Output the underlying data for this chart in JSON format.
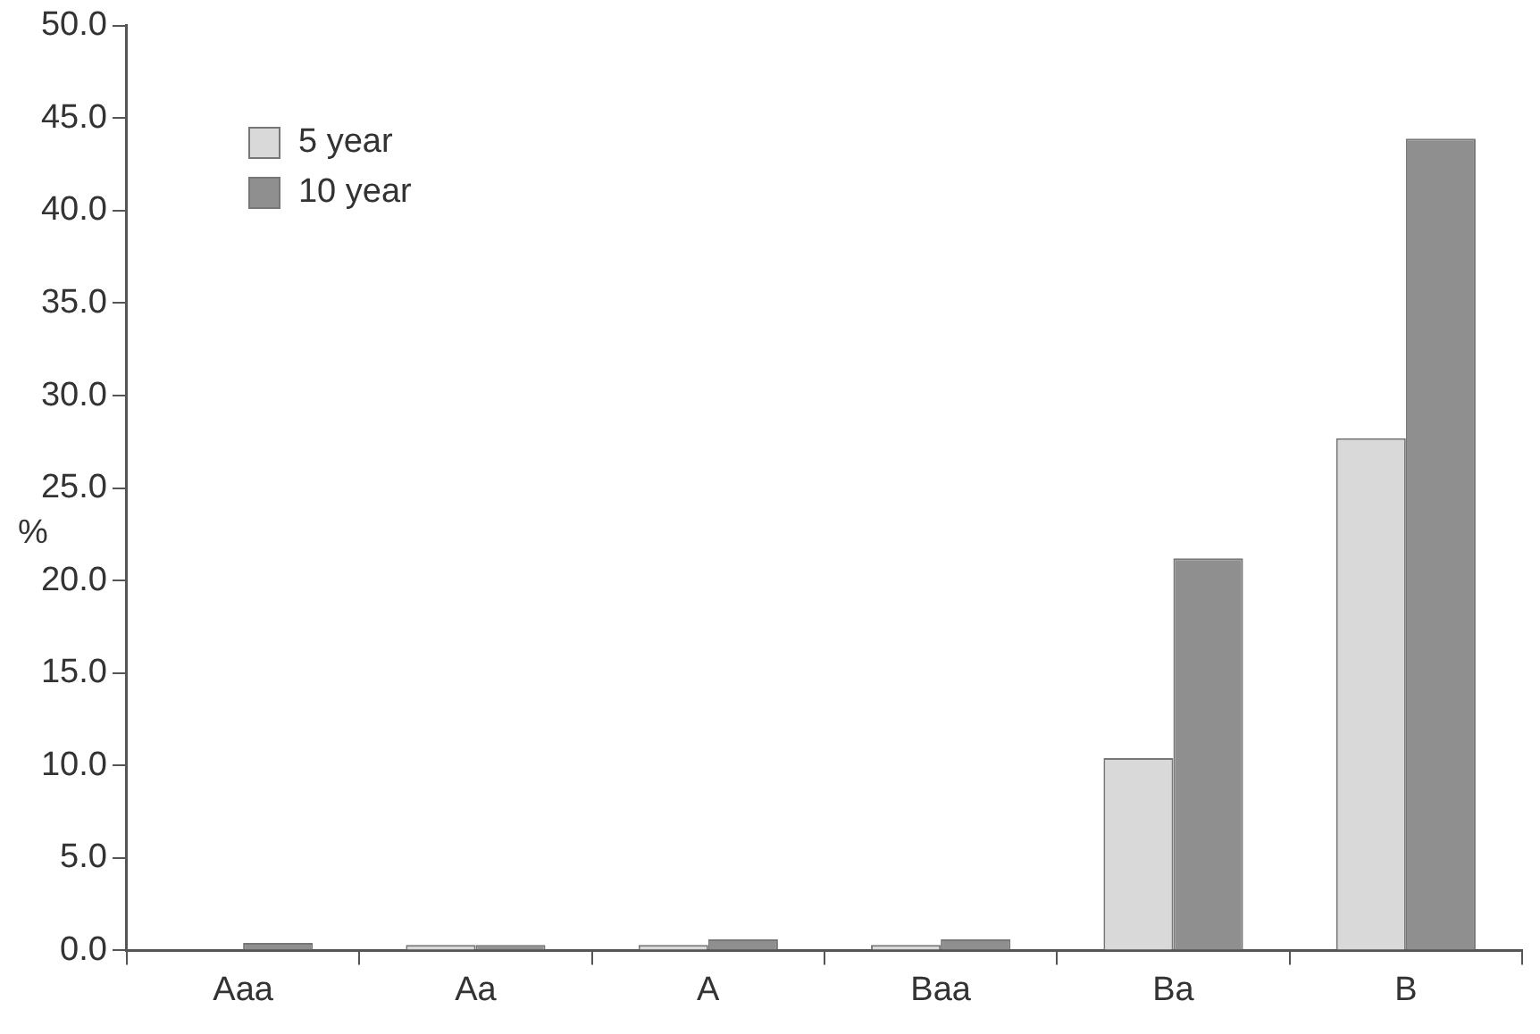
{
  "chart_data": {
    "type": "bar",
    "ylabel": "%",
    "categories": [
      "Aaa",
      "Aa",
      "A",
      "Baa",
      "Ba",
      "B"
    ],
    "series": [
      {
        "name": "5 year",
        "color": "#d9d9d9",
        "values": [
          0,
          0.3,
          0.3,
          0.3,
          10.4,
          27.7
        ]
      },
      {
        "name": "10 year",
        "color": "#8f8f8f",
        "values": [
          0.4,
          0.3,
          0.6,
          0.6,
          21.2,
          43.9
        ]
      }
    ],
    "ylim": [
      0,
      50
    ],
    "yticks": [
      {
        "value": 0,
        "label": "0.0"
      },
      {
        "value": 5,
        "label": "5.0"
      },
      {
        "value": 10,
        "label": "10.0"
      },
      {
        "value": 15,
        "label": "15.0"
      },
      {
        "value": 20,
        "label": "20.0"
      },
      {
        "value": 25,
        "label": "25.0"
      },
      {
        "value": 30,
        "label": "30.0"
      },
      {
        "value": 35,
        "label": "35.0"
      },
      {
        "value": 40,
        "label": "40.0"
      },
      {
        "value": 45,
        "label": "45.0"
      },
      {
        "value": 50,
        "label": "50.0"
      }
    ],
    "legend": "top left",
    "grid": false
  }
}
